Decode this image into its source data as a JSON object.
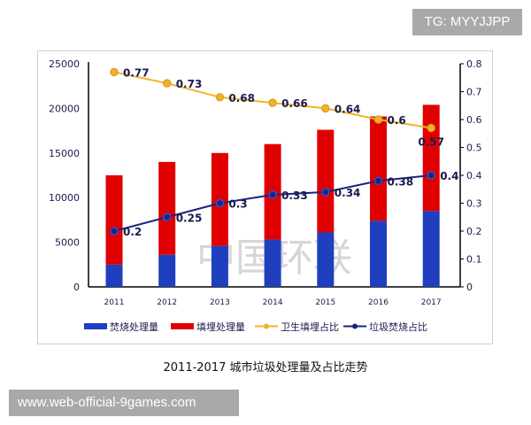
{
  "watermarks": {
    "top": "TG: MYYJJPP",
    "bottom": "www.web-official-9games.com",
    "center": "中国环联"
  },
  "caption": "2011-2017 城市垃圾处理量及占比走势",
  "colors": {
    "incineration": "#1f3fbf",
    "landfill": "#e00000",
    "landfill_ratio": "#f0b429",
    "incineration_ratio": "#1a237e",
    "axis": "#000000",
    "text": "#1a1a4e"
  },
  "chart_data": {
    "type": "bar",
    "stacked": true,
    "categories": [
      "2011",
      "2012",
      "2013",
      "2014",
      "2015",
      "2016",
      "2017"
    ],
    "series": [
      {
        "name": "焚烧处理量",
        "type": "bar",
        "axis": "left",
        "values": [
          2500,
          3600,
          4600,
          5300,
          6100,
          7400,
          8500
        ]
      },
      {
        "name": "填埋处理量",
        "type": "bar",
        "axis": "left",
        "values": [
          10000,
          10400,
          10400,
          10700,
          11500,
          11700,
          11900
        ]
      },
      {
        "name": "卫生填埋占比",
        "type": "line",
        "axis": "right",
        "values": [
          0.77,
          0.73,
          0.68,
          0.66,
          0.64,
          0.6,
          0.57
        ],
        "labels": [
          "0.77",
          "0.73",
          "0.68",
          "0.66",
          "0.64",
          "0.6",
          "0.57"
        ]
      },
      {
        "name": "垃圾焚烧占比",
        "type": "line",
        "axis": "right",
        "values": [
          0.2,
          0.25,
          0.3,
          0.33,
          0.34,
          0.38,
          0.4
        ],
        "labels": [
          "0.2",
          "0.25",
          "0.3",
          "0.33",
          "0.34",
          "0.38",
          "0.4"
        ]
      }
    ],
    "y_left": {
      "range": [
        0,
        25000
      ],
      "ticks": [
        "0",
        "5000",
        "10000",
        "15000",
        "20000",
        "25000"
      ]
    },
    "y_right": {
      "range": [
        0,
        0.8
      ],
      "ticks": [
        "0",
        "0.1",
        "0.2",
        "0.3",
        "0.4",
        "0.5",
        "0.6",
        "0.7",
        "0.8"
      ]
    },
    "grid": false,
    "legend_position": "bottom"
  }
}
